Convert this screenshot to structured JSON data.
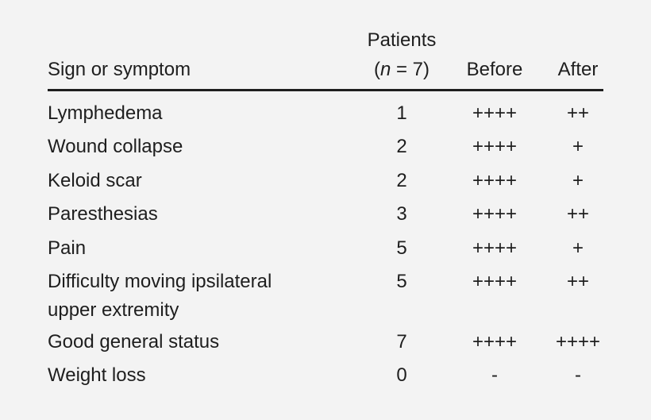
{
  "header": {
    "sign": "Sign or symptom",
    "patients_line1": "Patients",
    "patients_n": "n",
    "patients_line2_rest": " = 7)",
    "patients_open": "(",
    "before": "Before",
    "after": "After"
  },
  "rows": [
    {
      "sign": "Lymphedema",
      "sign2": "",
      "patients": "1",
      "before": "++++",
      "after": "++"
    },
    {
      "sign": "Wound collapse",
      "sign2": "",
      "patients": "2",
      "before": "++++",
      "after": "+"
    },
    {
      "sign": "Keloid scar",
      "sign2": "",
      "patients": "2",
      "before": "++++",
      "after": "+"
    },
    {
      "sign": "Paresthesias",
      "sign2": "",
      "patients": "3",
      "before": "++++",
      "after": "++"
    },
    {
      "sign": "Pain",
      "sign2": "",
      "patients": "5",
      "before": "++++",
      "after": "+"
    },
    {
      "sign": "Difficulty moving ipsilateral",
      "sign2": "upper extremity",
      "patients": "5",
      "before": "++++",
      "after": "++"
    },
    {
      "sign": "Good general status",
      "sign2": "",
      "patients": "7",
      "before": "++++",
      "after": "++++"
    },
    {
      "sign": "Weight loss",
      "sign2": "",
      "patients": "0",
      "before": "-",
      "after": "-"
    }
  ]
}
